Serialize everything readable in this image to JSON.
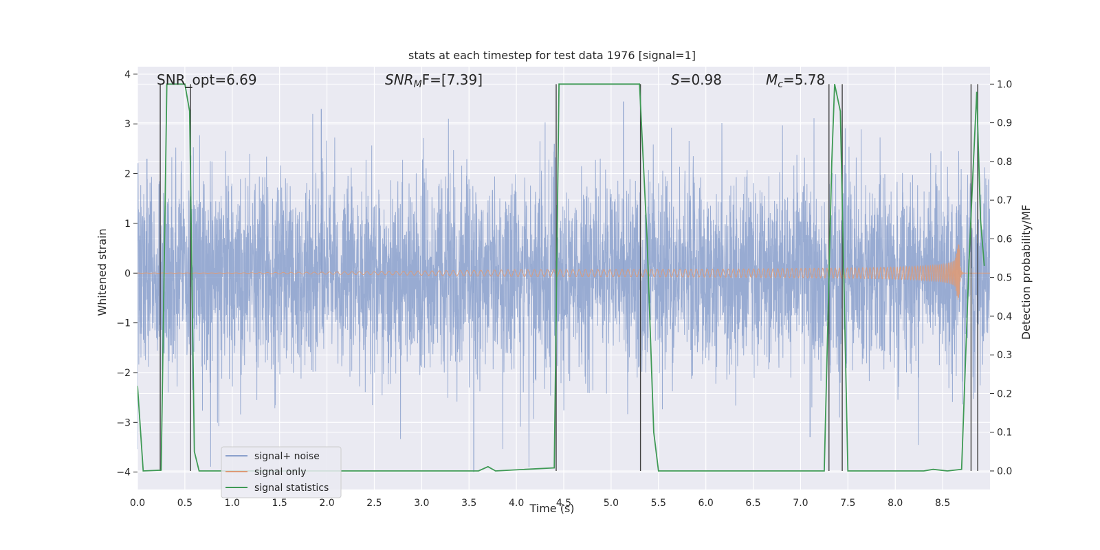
{
  "chart_data": {
    "type": "line",
    "title": "stats at each timestep for test data 1976 [signal=1]",
    "xlabel": "Time (s)",
    "ylabel": "Whitened strain",
    "ylabel_right": "Detection probability/MF",
    "xlim": [
      0,
      9
    ],
    "ylim": [
      -4.35,
      4.15
    ],
    "ylim_right": [
      -0.048,
      1.045
    ],
    "x_ticks": [
      "0.0",
      "0.5",
      "1.0",
      "1.5",
      "2.0",
      "2.5",
      "3.0",
      "3.5",
      "4.0",
      "4.5",
      "5.0",
      "5.5",
      "6.0",
      "6.5",
      "7.0",
      "7.5",
      "8.0",
      "8.5"
    ],
    "x_tick_values": [
      0,
      0.5,
      1,
      1.5,
      2,
      2.5,
      3,
      3.5,
      4,
      4.5,
      5,
      5.5,
      6,
      6.5,
      7,
      7.5,
      8,
      8.5
    ],
    "y_ticks": [
      "−4",
      "−3",
      "−2",
      "−1",
      "0",
      "1",
      "2",
      "3",
      "4"
    ],
    "y_tick_values": [
      -4,
      -3,
      -2,
      -1,
      0,
      1,
      2,
      3,
      4
    ],
    "y_ticks_right": [
      "0.0",
      "0.1",
      "0.2",
      "0.3",
      "0.4",
      "0.5",
      "0.6",
      "0.7",
      "0.8",
      "0.9",
      "1.0"
    ],
    "y_tick_values_right": [
      0,
      0.1,
      0.2,
      0.3,
      0.4,
      0.5,
      0.6,
      0.7,
      0.8,
      0.9,
      1.0
    ],
    "annotations": {
      "snr_opt": "SNR_opt=6.69",
      "snr_mf_main": "SNR",
      "snr_mf_sub": "M",
      "snr_mf_tail": "F=[7.39]",
      "s_main": "S",
      "s_tail": "=0.98",
      "mc_main": "M",
      "mc_sub": "c",
      "mc_tail": "=5.78"
    },
    "legend": {
      "placement": "lower-left",
      "entries": [
        "signal+ noise",
        "signal only",
        "signal statistics"
      ]
    },
    "series": [
      {
        "name": "signal+ noise",
        "color": "#8aa0cc",
        "description": "whitened noisy strain, approx. std 1, range about -4 to 3.3",
        "noise_std": 1.0,
        "spikes": [
          {
            "x": 1.94,
            "y": 3.3
          },
          {
            "x": 3.55,
            "y": -4.0
          },
          {
            "x": 5.13,
            "y": 3.45
          },
          {
            "x": 4.4,
            "y": 2.6
          },
          {
            "x": 0.1,
            "y": 2.3
          },
          {
            "x": 7.1,
            "y": -3.3
          }
        ]
      },
      {
        "name": "signal only",
        "color": "#dd9a77",
        "description": "chirp signal growing in amplitude, merger near 8.68 s",
        "merger_time": 8.68,
        "peak_amplitude": 0.58,
        "trough_amplitude": -0.82
      },
      {
        "name": "signal statistics",
        "color": "#3f9a55",
        "axis": "right",
        "x": [
          0.0,
          0.06,
          0.25,
          0.28,
          0.31,
          0.5,
          0.55,
          0.6,
          0.65,
          3.6,
          3.7,
          3.78,
          4.4,
          4.45,
          4.5,
          5.3,
          5.38,
          5.45,
          5.5,
          7.25,
          7.33,
          7.36,
          7.42,
          7.5,
          8.3,
          8.4,
          8.55,
          8.7,
          8.78,
          8.82,
          8.86,
          8.9,
          8.94
        ],
        "y": [
          0.22,
          0.0,
          0.002,
          0.5,
          1.0,
          1.0,
          0.93,
          0.05,
          0.0,
          0.0,
          0.011,
          0.0,
          0.008,
          1.0,
          1.0,
          1.0,
          0.6,
          0.1,
          0.0,
          0.0,
          0.8,
          1.0,
          0.93,
          0.0,
          0.0,
          0.004,
          0.0,
          0.004,
          0.55,
          0.77,
          0.98,
          0.65,
          0.53
        ]
      }
    ],
    "event_markers": {
      "color": "#404040",
      "x": [
        0.24,
        0.56,
        4.42,
        5.31,
        7.3,
        7.44,
        8.8,
        8.87
      ]
    }
  }
}
